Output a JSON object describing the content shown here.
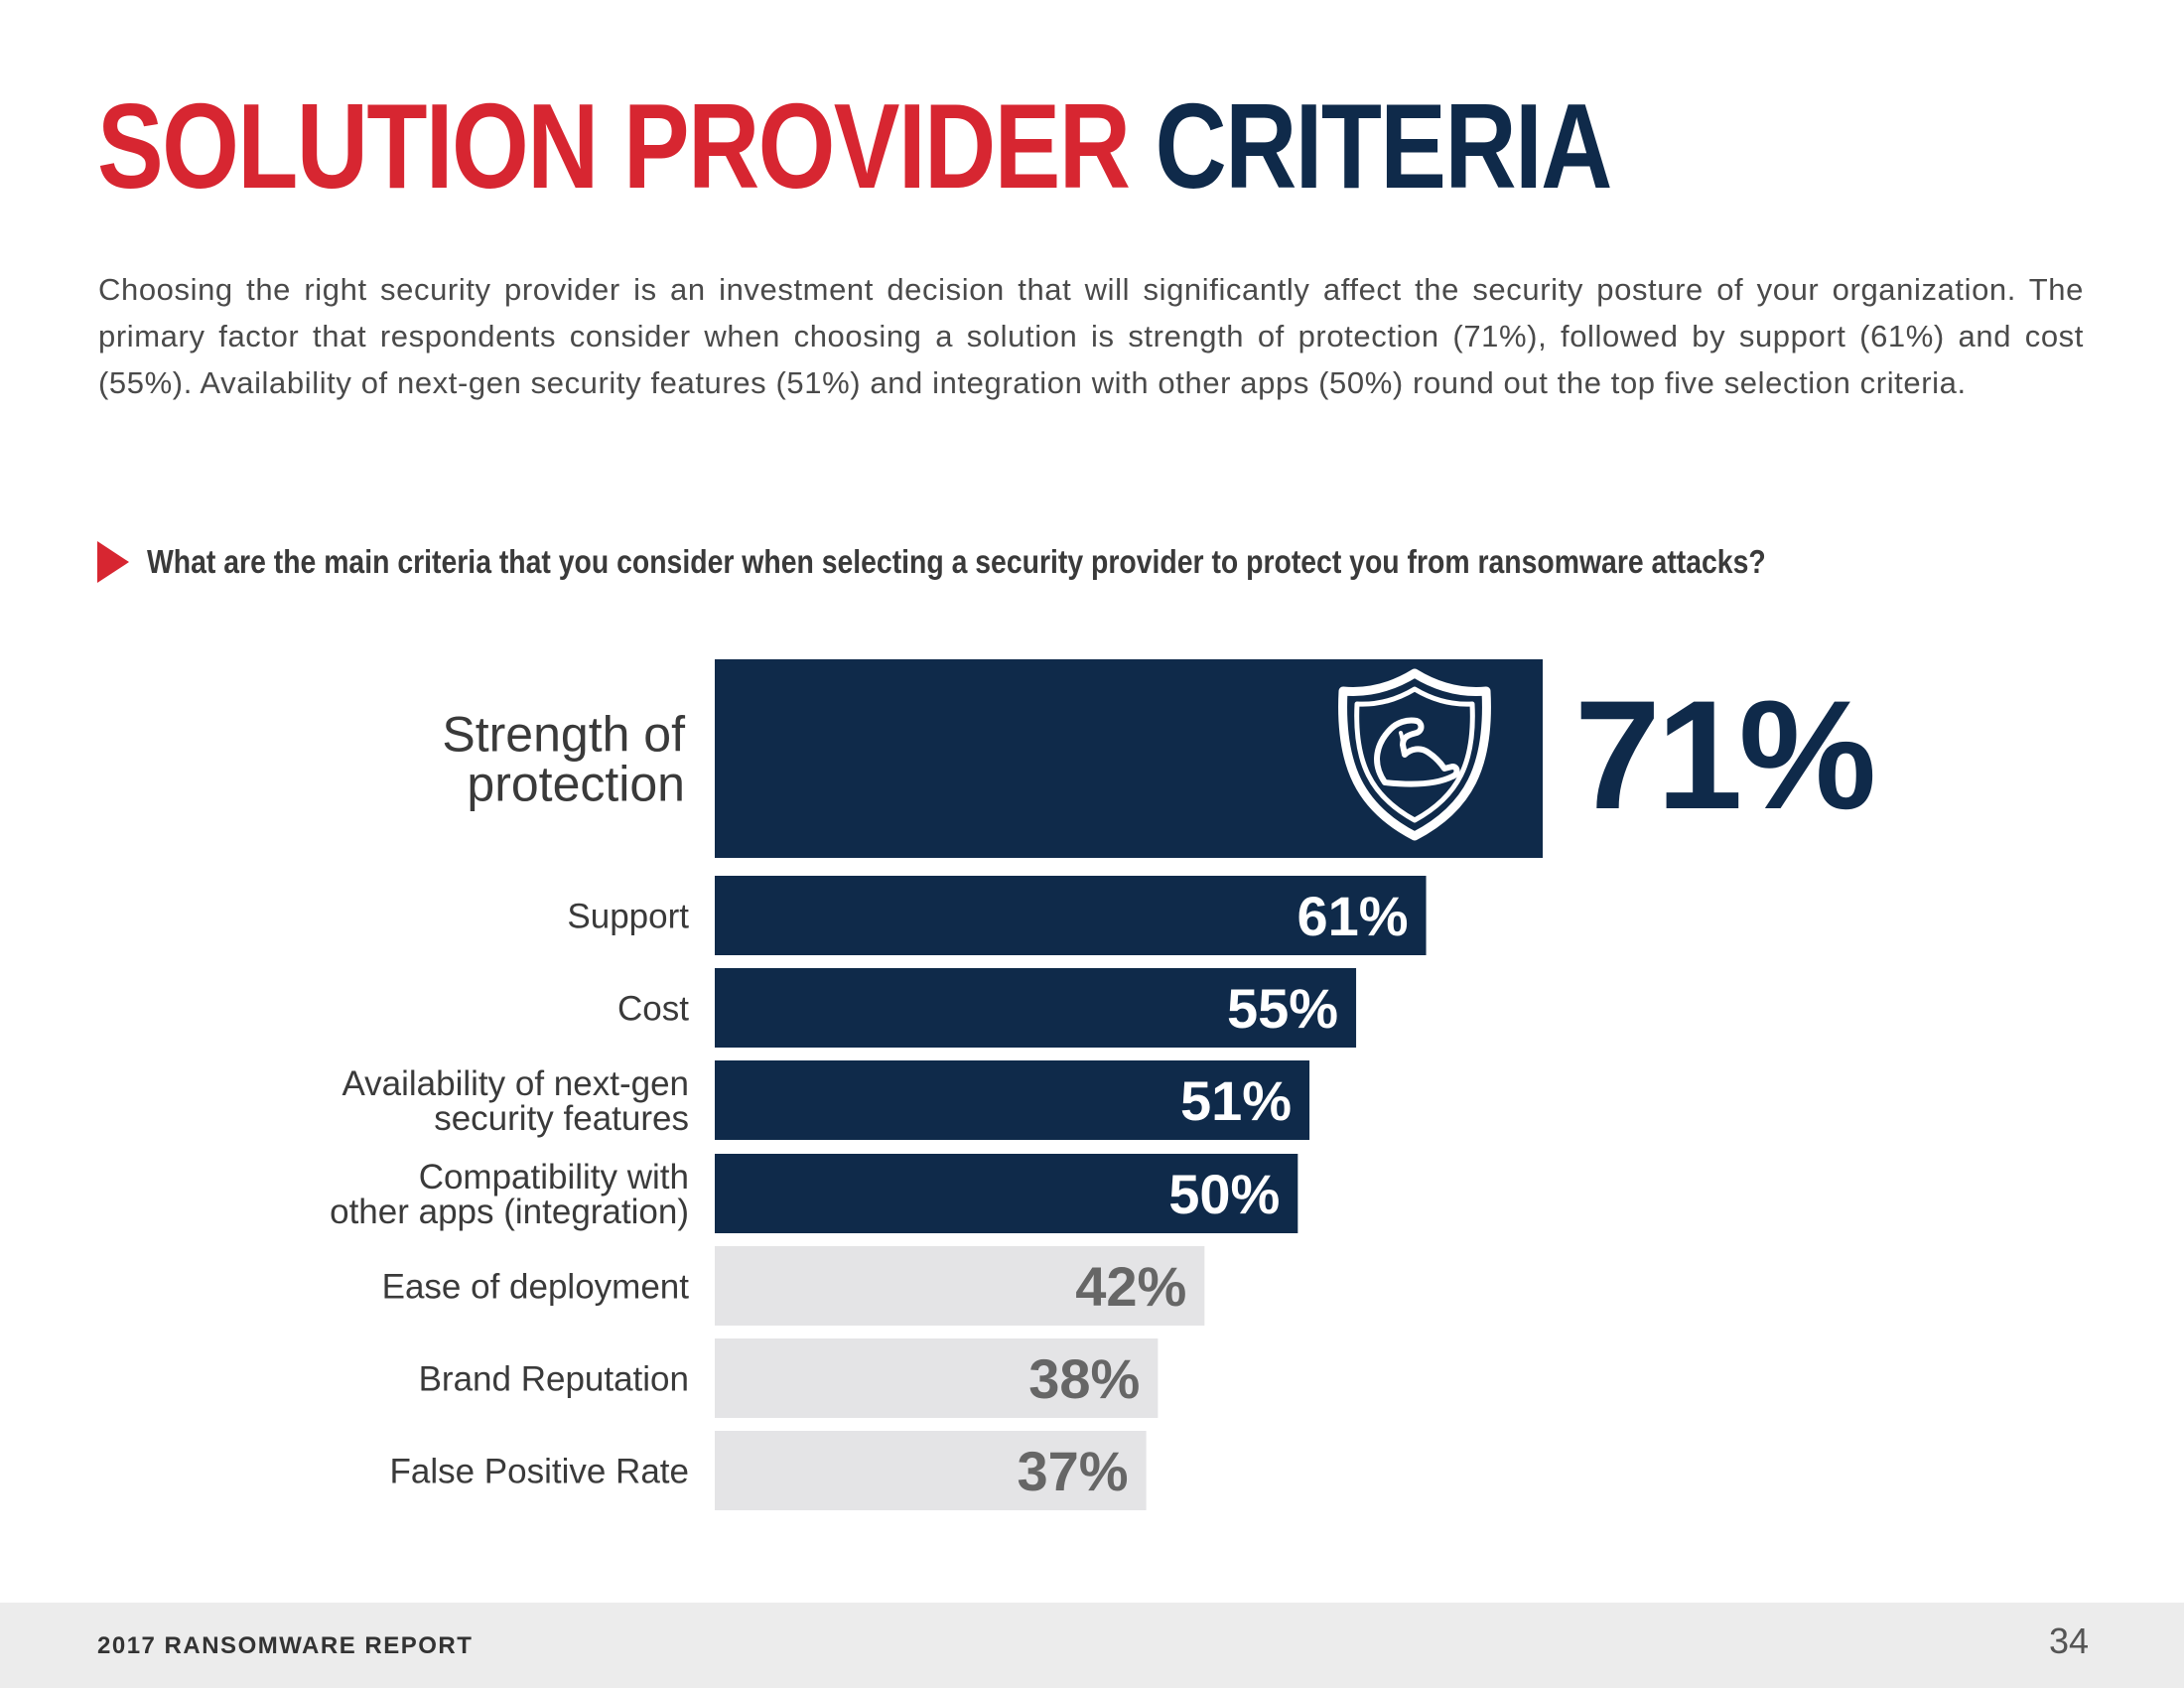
{
  "page": {
    "title_part1": "SOLUTION PROVIDER",
    "title_part2": "CRITERIA",
    "intro": "Choosing the right security provider is an investment decision that will significantly affect the security posture of your organization. The primary factor that respondents consider when choosing a solution is strength of protection (71%), followed by support (61%) and cost (55%). Availability of next-gen security features (51%) and integration with other apps (50%) round out the top five selection criteria.",
    "question": "What are the main criteria that you consider when selecting a security provider to protect you from ransomware attacks?",
    "footer_title": "2017 RANSOMWARE REPORT",
    "page_number": "34"
  },
  "colors": {
    "red": "#d72631",
    "navy": "#0f2a4a",
    "light_bar": "#e4e4e6",
    "light_label": "#666666",
    "text": "#3a3a3a"
  },
  "icons": {
    "highlight_bar_icon": "shield-bicep-icon",
    "question_marker": "triangle-right-icon"
  },
  "chart_data": {
    "type": "bar",
    "orientation": "horizontal",
    "title": "What are the main criteria that you consider when selecting a security provider to protect you from ransomware attacks?",
    "categories": [
      [
        "Strength of",
        "protection"
      ],
      [
        "Support"
      ],
      [
        "Cost"
      ],
      [
        "Availability of next-gen",
        "security features"
      ],
      [
        "Compatibility with",
        "other apps (integration)"
      ],
      [
        "Ease of deployment"
      ],
      [
        "Brand Reputation"
      ],
      [
        "False Positive Rate"
      ]
    ],
    "values": [
      71,
      61,
      55,
      51,
      50,
      42,
      38,
      37
    ],
    "value_labels": [
      "71%",
      "61%",
      "55%",
      "51%",
      "50%",
      "42%",
      "38%",
      "37%"
    ],
    "unit": "%",
    "highlight_top": 5,
    "xlim": [
      0,
      100
    ],
    "grid": false,
    "legend": "none"
  }
}
